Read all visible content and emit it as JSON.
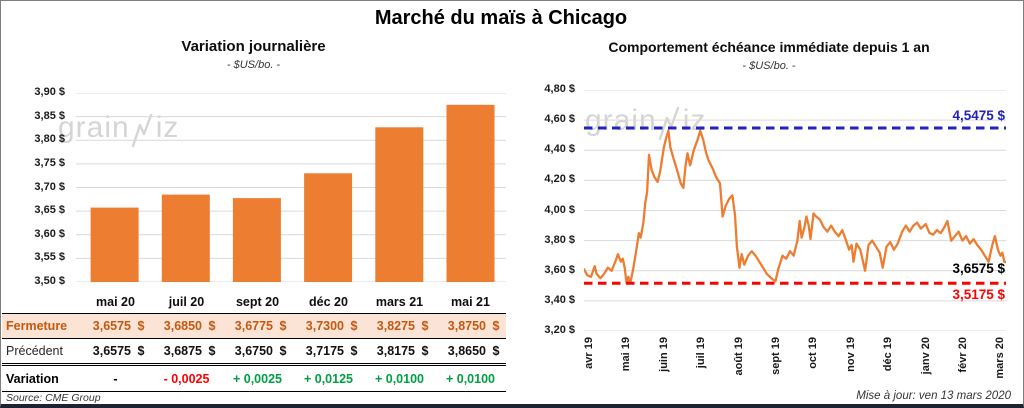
{
  "page": {
    "title": "Marché du maïs à Chicago",
    "source": "Source: CME Group",
    "updated": "Mise à jour: ven 13 mars 2020",
    "watermark": "grainwiz"
  },
  "table": {
    "columns": [
      "mai 20",
      "juil 20",
      "sept 20",
      "déc 20",
      "mars 21",
      "mai 21"
    ],
    "rows": [
      {
        "label": "Fermeture",
        "style": "fermeture",
        "values": [
          "3,6575",
          "3,6850",
          "3,6775",
          "3,7300",
          "3,8275",
          "3,8750"
        ],
        "currency": "$"
      },
      {
        "label": "Précédent",
        "style": "precedent",
        "values": [
          "3,6575",
          "3,6875",
          "3,6750",
          "3,7175",
          "3,8175",
          "3,8650"
        ],
        "currency": "$"
      },
      {
        "label": "Variation",
        "style": "variation",
        "values": [
          "-",
          "- 0,0025",
          "+ 0,0025",
          "+ 0,0125",
          "+ 0,0100",
          "+ 0,0100"
        ],
        "value_colors": [
          "#000000",
          "#FF0000",
          "#00A042",
          "#00A042",
          "#00A042",
          "#00A042"
        ]
      }
    ]
  },
  "chart_data": [
    {
      "type": "bar",
      "title": "Variation journalière",
      "subtitle": "- $US/bo. -",
      "categories": [
        "mai 20",
        "juil 20",
        "sept 20",
        "déc 20",
        "mars 21",
        "mai 21"
      ],
      "values": [
        3.6575,
        3.685,
        3.6775,
        3.73,
        3.8275,
        3.875
      ],
      "ylim": [
        3.5,
        3.9
      ],
      "ytick_step": 0.05,
      "ytick_labels": [
        "3,90 $",
        "3,85 $",
        "3,80 $",
        "3,75 $",
        "3,70 $",
        "3,65 $",
        "3,60 $",
        "3,55 $",
        "3,50 $"
      ],
      "bar_color": "#ED7D31",
      "grid_color": "#D9D9D9",
      "legend": "none"
    },
    {
      "type": "line",
      "title": "Comportement échéance immédiate depuis 1 an",
      "subtitle": "- $US/bo. -",
      "x_labels": [
        "avr 19",
        "mai 19",
        "juin 19",
        "juil 19",
        "août 19",
        "sept 19",
        "oct 19",
        "nov 19",
        "déc 19",
        "janv 20",
        "févr 20",
        "mars 20"
      ],
      "ylim": [
        3.2,
        4.8
      ],
      "ytick_step": 0.2,
      "ytick_labels": [
        "4,80 $",
        "4,60 $",
        "4,40 $",
        "4,20 $",
        "4,00 $",
        "3,80 $",
        "3,60 $",
        "3,40 $",
        "3,20 $"
      ],
      "line_color": "#ED7D31",
      "grid_color": "#D9D9D9",
      "high_line": {
        "value": 4.5475,
        "label": "4,5475 $",
        "color": "#2222BE"
      },
      "low_line": {
        "value": 3.5175,
        "label": "3,5175 $",
        "color": "#FF0000"
      },
      "last": {
        "value": 3.6575,
        "label": "3,6575 $",
        "color": "#000000"
      },
      "points": [
        [
          -0.2,
          3.61
        ],
        [
          -0.1,
          3.57
        ],
        [
          0,
          3.56
        ],
        [
          0.1,
          3.63
        ],
        [
          0.15,
          3.58
        ],
        [
          0.25,
          3.55
        ],
        [
          0.35,
          3.58
        ],
        [
          0.45,
          3.62
        ],
        [
          0.55,
          3.6
        ],
        [
          0.65,
          3.66
        ],
        [
          0.72,
          3.71
        ],
        [
          0.8,
          3.66
        ],
        [
          0.85,
          3.68
        ],
        [
          0.9,
          3.62
        ],
        [
          0.95,
          3.52
        ],
        [
          1.0,
          3.56
        ],
        [
          1.05,
          3.52
        ],
        [
          1.12,
          3.6
        ],
        [
          1.2,
          3.72
        ],
        [
          1.28,
          3.85
        ],
        [
          1.33,
          3.82
        ],
        [
          1.4,
          3.92
        ],
        [
          1.45,
          4.05
        ],
        [
          1.5,
          4.12
        ],
        [
          1.55,
          4.37
        ],
        [
          1.62,
          4.27
        ],
        [
          1.7,
          4.22
        ],
        [
          1.78,
          4.19
        ],
        [
          1.85,
          4.26
        ],
        [
          1.95,
          4.42
        ],
        [
          2.02,
          4.49
        ],
        [
          2.07,
          4.53
        ],
        [
          2.12,
          4.42
        ],
        [
          2.2,
          4.35
        ],
        [
          2.3,
          4.27
        ],
        [
          2.4,
          4.18
        ],
        [
          2.47,
          4.15
        ],
        [
          2.53,
          4.3
        ],
        [
          2.58,
          4.38
        ],
        [
          2.65,
          4.3
        ],
        [
          2.75,
          4.4
        ],
        [
          2.85,
          4.47
        ],
        [
          2.92,
          4.53
        ],
        [
          3.0,
          4.47
        ],
        [
          3.08,
          4.38
        ],
        [
          3.15,
          4.33
        ],
        [
          3.25,
          4.28
        ],
        [
          3.35,
          4.22
        ],
        [
          3.45,
          4.18
        ],
        [
          3.52,
          3.96
        ],
        [
          3.6,
          4.03
        ],
        [
          3.7,
          4.08
        ],
        [
          3.78,
          4.1
        ],
        [
          3.85,
          3.97
        ],
        [
          3.9,
          3.76
        ],
        [
          3.97,
          3.62
        ],
        [
          4.03,
          3.71
        ],
        [
          4.1,
          3.64
        ],
        [
          4.2,
          3.7
        ],
        [
          4.3,
          3.73
        ],
        [
          4.4,
          3.7
        ],
        [
          4.5,
          3.66
        ],
        [
          4.6,
          3.62
        ],
        [
          4.7,
          3.58
        ],
        [
          4.82,
          3.55
        ],
        [
          4.93,
          3.53
        ],
        [
          5.02,
          3.62
        ],
        [
          5.12,
          3.7
        ],
        [
          5.22,
          3.68
        ],
        [
          5.32,
          3.73
        ],
        [
          5.42,
          3.7
        ],
        [
          5.52,
          3.8
        ],
        [
          5.58,
          3.93
        ],
        [
          5.63,
          3.82
        ],
        [
          5.7,
          3.88
        ],
        [
          5.76,
          3.96
        ],
        [
          5.82,
          3.9
        ],
        [
          5.87,
          3.81
        ],
        [
          5.95,
          3.98
        ],
        [
          6.02,
          3.96
        ],
        [
          6.12,
          3.94
        ],
        [
          6.22,
          3.89
        ],
        [
          6.32,
          3.86
        ],
        [
          6.42,
          3.9
        ],
        [
          6.52,
          3.86
        ],
        [
          6.62,
          3.83
        ],
        [
          6.72,
          3.87
        ],
        [
          6.82,
          3.8
        ],
        [
          6.9,
          3.74
        ],
        [
          6.97,
          3.77
        ],
        [
          7.02,
          3.66
        ],
        [
          7.1,
          3.78
        ],
        [
          7.2,
          3.74
        ],
        [
          7.33,
          3.6
        ],
        [
          7.42,
          3.77
        ],
        [
          7.52,
          3.8
        ],
        [
          7.62,
          3.76
        ],
        [
          7.72,
          3.72
        ],
        [
          7.8,
          3.62
        ],
        [
          7.9,
          3.76
        ],
        [
          8.0,
          3.79
        ],
        [
          8.1,
          3.74
        ],
        [
          8.2,
          3.78
        ],
        [
          8.32,
          3.86
        ],
        [
          8.42,
          3.9
        ],
        [
          8.52,
          3.86
        ],
        [
          8.62,
          3.9
        ],
        [
          8.72,
          3.92
        ],
        [
          8.82,
          3.88
        ],
        [
          8.95,
          3.91
        ],
        [
          9.05,
          3.85
        ],
        [
          9.15,
          3.84
        ],
        [
          9.25,
          3.87
        ],
        [
          9.35,
          3.85
        ],
        [
          9.45,
          3.89
        ],
        [
          9.53,
          3.93
        ],
        [
          9.63,
          3.8
        ],
        [
          9.73,
          3.83
        ],
        [
          9.83,
          3.86
        ],
        [
          9.93,
          3.8
        ],
        [
          10.03,
          3.83
        ],
        [
          10.13,
          3.78
        ],
        [
          10.23,
          3.81
        ],
        [
          10.33,
          3.77
        ],
        [
          10.43,
          3.74
        ],
        [
          10.53,
          3.7
        ],
        [
          10.63,
          3.66
        ],
        [
          10.73,
          3.77
        ],
        [
          10.8,
          3.83
        ],
        [
          10.88,
          3.74
        ],
        [
          10.95,
          3.7
        ],
        [
          11.0,
          3.72
        ],
        [
          11.05,
          3.66
        ],
        [
          11.1,
          3.6575
        ]
      ]
    }
  ]
}
